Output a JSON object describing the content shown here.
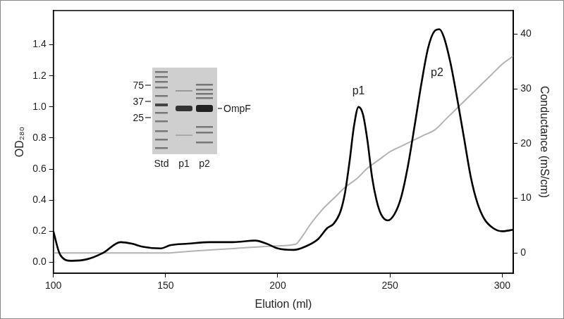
{
  "chart_data": {
    "type": "line",
    "x_label": "Elution (ml)",
    "y_label": "OD₂₈₀",
    "y2_label": "Conductance (mS/cm)",
    "xlim": [
      100,
      305
    ],
    "xticks": [
      100,
      150,
      200,
      250,
      300
    ],
    "ylim": [
      -0.07,
      1.62
    ],
    "yticks": [
      {
        "value": 0,
        "label": "0.0"
      },
      {
        "value": 0.2,
        "label": "0.2"
      },
      {
        "value": 0.4,
        "label": "0.4"
      },
      {
        "value": 0.6,
        "label": "0.6"
      },
      {
        "value": 0.8,
        "label": "0.8"
      },
      {
        "value": 1.0,
        "label": "1.0"
      },
      {
        "value": 1.2,
        "label": "1.2"
      },
      {
        "value": 1.4,
        "label": "1.4"
      }
    ],
    "y2lim": [
      -3.7,
      44.3
    ],
    "y2ticks": [
      0,
      10,
      20,
      30,
      40
    ],
    "grid": false,
    "series": [
      {
        "color": "#000000",
        "axis": "y",
        "x": [
          100,
          103,
          108,
          115,
          122,
          130,
          135,
          140,
          148,
          152,
          160,
          170,
          180,
          190,
          195,
          200,
          207,
          212,
          218,
          222,
          225,
          228,
          230,
          232,
          234,
          236,
          238,
          240,
          242,
          244,
          246,
          249,
          252,
          255,
          258,
          261,
          264,
          267,
          270,
          272,
          274,
          277,
          280,
          283,
          286,
          289,
          292,
          296,
          300,
          305
        ],
        "values": [
          0.2,
          0.05,
          0.01,
          0.02,
          0.06,
          0.13,
          0.12,
          0.1,
          0.09,
          0.11,
          0.12,
          0.13,
          0.13,
          0.14,
          0.12,
          0.09,
          0.08,
          0.1,
          0.15,
          0.22,
          0.25,
          0.33,
          0.45,
          0.65,
          0.88,
          1.0,
          0.95,
          0.78,
          0.55,
          0.4,
          0.31,
          0.27,
          0.31,
          0.42,
          0.62,
          0.88,
          1.15,
          1.38,
          1.49,
          1.5,
          1.45,
          1.28,
          1.05,
          0.8,
          0.55,
          0.38,
          0.28,
          0.22,
          0.2,
          0.21
        ]
      },
      {
        "color": "#b3b3b3",
        "axis": "y2",
        "x": [
          100,
          150,
          160,
          180,
          200,
          208,
          210,
          215,
          220,
          225,
          230,
          235,
          240,
          245,
          250,
          255,
          260,
          265,
          270,
          275,
          280,
          285,
          290,
          295,
          300,
          305
        ],
        "values": [
          0,
          0,
          0.3,
          0.8,
          1.3,
          1.6,
          2.5,
          5.5,
          8,
          10,
          12,
          13.5,
          15.5,
          17,
          18.5,
          19.5,
          20.5,
          21.5,
          22.5,
          24.5,
          26.5,
          28.5,
          30.5,
          32.5,
          34.5,
          36
        ]
      }
    ],
    "annotations": [
      {
        "text": "p1",
        "x": 236,
        "y": 1.1
      },
      {
        "text": "p2",
        "x": 271,
        "y": 1.22
      }
    ],
    "inset": {
      "marker_labels": [
        75,
        37,
        25
      ],
      "band_label": "OmpF",
      "lanes": [
        "Std",
        "p1",
        "p2"
      ]
    }
  }
}
